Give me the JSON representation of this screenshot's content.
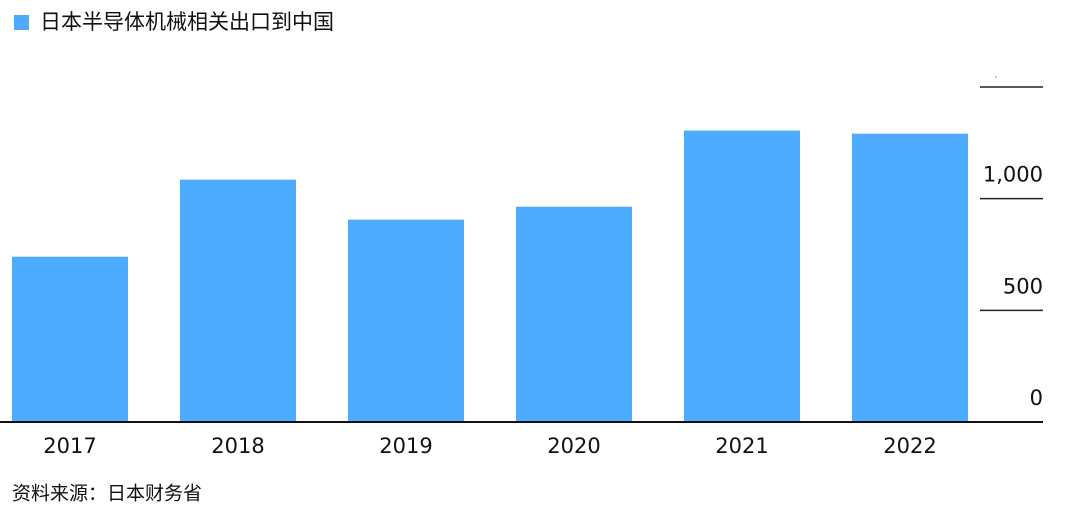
{
  "chart_data": {
    "type": "bar",
    "legend": "日本半导体机械相关出口到中国",
    "source": "资料来源：日本财务省",
    "categories": [
      "2017",
      "2018",
      "2019",
      "2020",
      "2021",
      "2022"
    ],
    "series": [
      {
        "name": "日本半导体机械相关出口到中国",
        "color": "#4dacff",
        "values": [
          740,
          1085,
          906,
          964,
          1305,
          1291
        ]
      }
    ],
    "ylim": [
      0,
      1500
    ],
    "yticks": [
      0,
      500,
      {
        "value": 1000,
        "label": "1,000"
      },
      {
        "value": 1500,
        "label": "."
      }
    ],
    "axis_side": "right"
  }
}
